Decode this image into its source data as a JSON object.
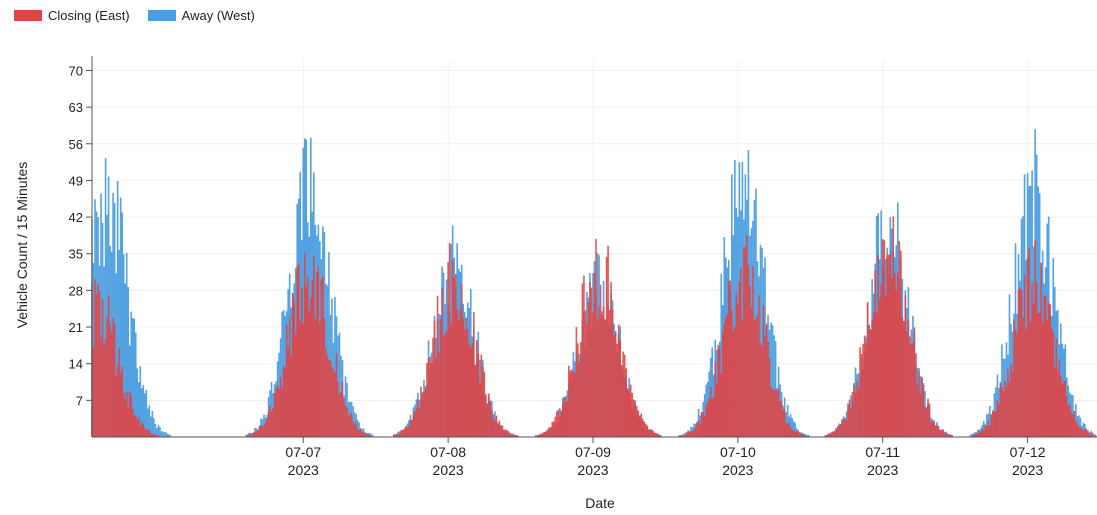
{
  "legend": {
    "closing_label": "Closing (East)",
    "away_label": "Away (West)"
  },
  "colors": {
    "closing": "#e04545",
    "away": "#4a9de0",
    "grid": "#f0f0f0",
    "axis": "#555555"
  },
  "chart_data": {
    "type": "bar",
    "xlabel": "Date",
    "ylabel": "Vehicle Count / 15 Minutes",
    "ylim": [
      0,
      72
    ],
    "yticks": [
      7,
      14,
      21,
      28,
      35,
      42,
      49,
      56,
      63,
      70
    ],
    "xlim": [
      "2023-07-06 01:00",
      "2023-07-12 23:30"
    ],
    "xticks": [
      {
        "date": "2023-07-07",
        "label_line1": "07-07",
        "label_line2": "2023"
      },
      {
        "date": "2023-07-08",
        "label_line1": "07-08",
        "label_line2": "2023"
      },
      {
        "date": "2023-07-09",
        "label_line1": "07-09",
        "label_line2": "2023"
      },
      {
        "date": "2023-07-10",
        "label_line1": "07-10",
        "label_line2": "2023"
      },
      {
        "date": "2023-07-11",
        "label_line1": "07-11",
        "label_line2": "2023"
      },
      {
        "date": "2023-07-12",
        "label_line1": "07-12",
        "label_line2": "2023"
      }
    ],
    "interval_minutes": 15,
    "grid": true,
    "legend_position": "top-left",
    "stacked": false,
    "series": [
      {
        "name": "Closing (East)",
        "daily_peaks": [
          {
            "date": "2023-07-06",
            "peak_time": "02:00",
            "peak": 31
          },
          {
            "date": "2023-07-07",
            "peak_time": "13:00",
            "peak": 40
          },
          {
            "date": "2023-07-08",
            "peak_time": "13:00",
            "peak": 38
          },
          {
            "date": "2023-07-09",
            "peak_time": "13:00",
            "peak": 41
          },
          {
            "date": "2023-07-10",
            "peak_time": "13:00",
            "peak": 40
          },
          {
            "date": "2023-07-11",
            "peak_time": "13:00",
            "peak": 46
          },
          {
            "date": "2023-07-12",
            "peak_time": "13:00",
            "peak": 38
          }
        ]
      },
      {
        "name": "Away (West)",
        "daily_peaks": [
          {
            "date": "2023-07-06",
            "peak_time": "03:30",
            "peak": 57
          },
          {
            "date": "2023-07-07",
            "peak_time": "13:00",
            "peak": 60
          },
          {
            "date": "2023-07-08",
            "peak_time": "13:00",
            "peak": 41
          },
          {
            "date": "2023-07-09",
            "peak_time": "13:00",
            "peak": 36
          },
          {
            "date": "2023-07-10",
            "peak_time": "13:00",
            "peak": 62
          },
          {
            "date": "2023-07-11",
            "peak_time": "13:00",
            "peak": 51
          },
          {
            "date": "2023-07-12",
            "peak_time": "13:00",
            "peak": 59
          }
        ]
      }
    ]
  }
}
